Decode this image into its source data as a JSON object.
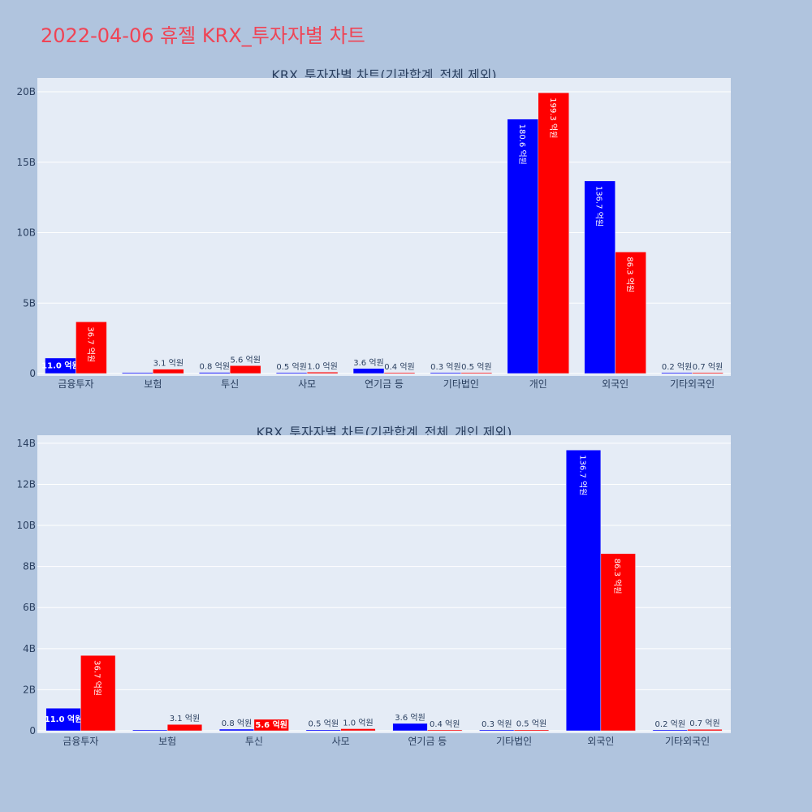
{
  "title": "2022-04-06 휴젤 KRX_투자자별 차트",
  "colors": {
    "background": "#b0c4de",
    "plot_bg": "#e5ecf6",
    "title": "#ef4455",
    "buy": "#0000ff",
    "sell": "#ff0000"
  },
  "chart_data": [
    {
      "type": "bar",
      "title": "KRX_투자자별 차트(기관합계_전체 제외)",
      "categories": [
        "금융투자",
        "보험",
        "투신",
        "사모",
        "연기금 등",
        "기타법인",
        "개인",
        "외국인",
        "기타외국인"
      ],
      "series": [
        {
          "color": "#0000ff",
          "values": [
            1.1,
            0.0,
            0.08,
            0.05,
            0.36,
            0.03,
            18.06,
            13.67,
            0.02
          ],
          "labels": [
            "11.0 억원",
            "",
            "0.8 억원",
            "0.5 억원",
            "3.6 억원",
            "0.3 억원",
            "180.6 억원",
            "136.7 억원",
            "0.2 억원"
          ]
        },
        {
          "color": "#ff0000",
          "values": [
            3.67,
            0.31,
            0.56,
            0.1,
            0.04,
            0.05,
            19.93,
            8.63,
            0.07
          ],
          "labels": [
            "36.7 억원",
            "3.1 억원",
            "5.6 억원",
            "1.0 억원",
            "0.4 억원",
            "0.5 억원",
            "199.3 억원",
            "86.3 억원",
            "0.7 억원"
          ]
        }
      ],
      "yticks": [
        "0",
        "5B",
        "10B",
        "15B",
        "20B"
      ],
      "ytick_values": [
        0,
        5,
        10,
        15,
        20
      ],
      "ylim": [
        0,
        20.98
      ],
      "grid": true
    },
    {
      "type": "bar",
      "title": "KRX_투자자별 차트(기관합계_전체_개인 제외)",
      "categories": [
        "금융투자",
        "보험",
        "투신",
        "사모",
        "연기금 등",
        "기타법인",
        "외국인",
        "기타외국인"
      ],
      "series": [
        {
          "color": "#0000ff",
          "values": [
            1.1,
            0.0,
            0.08,
            0.05,
            0.36,
            0.03,
            13.67,
            0.02
          ],
          "labels": [
            "11.0 억원",
            "",
            "0.8 억원",
            "0.5 억원",
            "3.6 억원",
            "0.3 억원",
            "136.7 억원",
            "0.2 억원"
          ]
        },
        {
          "color": "#ff0000",
          "values": [
            3.67,
            0.31,
            0.56,
            0.1,
            0.04,
            0.05,
            8.63,
            0.07
          ],
          "labels": [
            "36.7 억원",
            "3.1 억원",
            "5.6 억원",
            "1.0 억원",
            "0.4 억원",
            "0.5 억원",
            "86.3 억원",
            "0.7 억원"
          ]
        }
      ],
      "yticks": [
        "0",
        "2B",
        "4B",
        "6B",
        "8B",
        "10B",
        "12B",
        "14B"
      ],
      "ytick_values": [
        0,
        2,
        4,
        6,
        8,
        10,
        12,
        14
      ],
      "ylim": [
        0,
        14.39
      ],
      "grid": true
    }
  ]
}
